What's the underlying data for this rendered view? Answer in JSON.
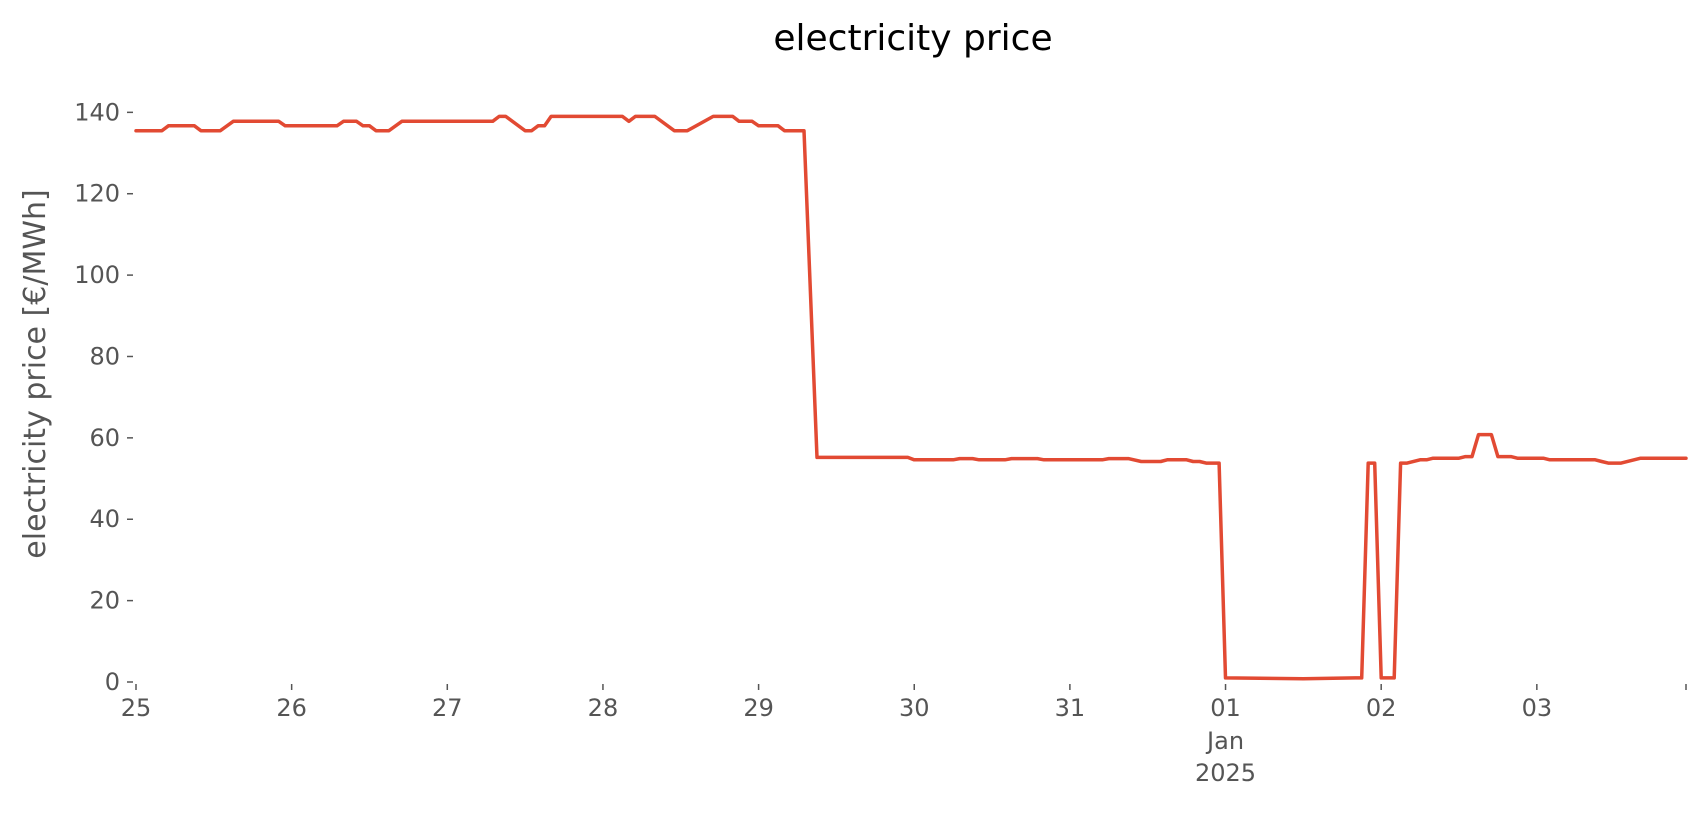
{
  "chart_data": {
    "type": "line",
    "title": "electricity price",
    "xlabel": "",
    "ylabel": "electricity price [€/MWh]",
    "xlim": [
      "2024-12-25",
      "2025-01-03 23:00"
    ],
    "ylim": [
      0,
      145
    ],
    "grid": false,
    "legend": "none",
    "x_ticks": [
      {
        "date": "2024-12-25",
        "label": "25"
      },
      {
        "date": "2024-12-26",
        "label": "26"
      },
      {
        "date": "2024-12-27",
        "label": "27"
      },
      {
        "date": "2024-12-28",
        "label": "28"
      },
      {
        "date": "2024-12-29",
        "label": "29"
      },
      {
        "date": "2024-12-30",
        "label": "30"
      },
      {
        "date": "2024-12-31",
        "label": "31"
      },
      {
        "date": "2025-01-01",
        "label": "01",
        "sublabels": [
          "Jan",
          "2025"
        ]
      },
      {
        "date": "2025-01-02",
        "label": "02"
      },
      {
        "date": "2025-01-03",
        "label": "03"
      },
      {
        "date": "2025-01-03 23:00",
        "label": ""
      }
    ],
    "y_ticks": [
      0,
      20,
      40,
      60,
      80,
      100,
      120,
      140
    ],
    "series": [
      {
        "color": "#E24A33",
        "points": [
          [
            "2024-12-25 00:00",
            135.5
          ],
          [
            "2024-12-25 04:00",
            135.5
          ],
          [
            "2024-12-25 05:00",
            136.7
          ],
          [
            "2024-12-25 09:00",
            136.7
          ],
          [
            "2024-12-25 10:00",
            135.5
          ],
          [
            "2024-12-25 13:00",
            135.5
          ],
          [
            "2024-12-25 15:00",
            137.8
          ],
          [
            "2024-12-25 22:00",
            137.8
          ],
          [
            "2024-12-25 23:00",
            136.7
          ],
          [
            "2024-12-26 07:00",
            136.7
          ],
          [
            "2024-12-26 08:00",
            137.8
          ],
          [
            "2024-12-26 10:00",
            137.8
          ],
          [
            "2024-12-26 11:00",
            136.7
          ],
          [
            "2024-12-26 12:00",
            136.7
          ],
          [
            "2024-12-26 13:00",
            135.5
          ],
          [
            "2024-12-26 15:00",
            135.5
          ],
          [
            "2024-12-26 17:00",
            137.8
          ],
          [
            "2024-12-27 07:00",
            137.8
          ],
          [
            "2024-12-27 08:00",
            139.0
          ],
          [
            "2024-12-27 09:00",
            139.0
          ],
          [
            "2024-12-27 12:00",
            135.5
          ],
          [
            "2024-12-27 13:00",
            135.5
          ],
          [
            "2024-12-27 14:00",
            136.7
          ],
          [
            "2024-12-27 15:00",
            136.7
          ],
          [
            "2024-12-27 16:00",
            139.0
          ],
          [
            "2024-12-28 03:00",
            139.0
          ],
          [
            "2024-12-28 04:00",
            137.8
          ],
          [
            "2024-12-28 05:00",
            139.0
          ],
          [
            "2024-12-28 08:00",
            139.0
          ],
          [
            "2024-12-28 11:00",
            135.5
          ],
          [
            "2024-12-28 13:00",
            135.5
          ],
          [
            "2024-12-28 17:00",
            139.0
          ],
          [
            "2024-12-28 20:00",
            139.0
          ],
          [
            "2024-12-28 21:00",
            137.8
          ],
          [
            "2024-12-28 23:00",
            137.8
          ],
          [
            "2024-12-29 00:00",
            136.7
          ],
          [
            "2024-12-29 03:00",
            136.7
          ],
          [
            "2024-12-29 04:00",
            135.5
          ],
          [
            "2024-12-29 07:00",
            135.5
          ],
          [
            "2024-12-29 09:00",
            55.2
          ],
          [
            "2024-12-29 23:00",
            55.2
          ],
          [
            "2024-12-30 00:00",
            54.6
          ],
          [
            "2024-12-30 06:00",
            54.6
          ],
          [
            "2024-12-30 07:00",
            54.9
          ],
          [
            "2024-12-30 09:00",
            54.9
          ],
          [
            "2024-12-30 10:00",
            54.6
          ],
          [
            "2024-12-30 14:00",
            54.6
          ],
          [
            "2024-12-30 15:00",
            54.9
          ],
          [
            "2024-12-30 19:00",
            54.9
          ],
          [
            "2024-12-30 20:00",
            54.6
          ],
          [
            "2024-12-31 05:00",
            54.6
          ],
          [
            "2024-12-31 06:00",
            54.9
          ],
          [
            "2024-12-31 09:00",
            54.9
          ],
          [
            "2024-12-31 11:00",
            54.2
          ],
          [
            "2024-12-31 14:00",
            54.2
          ],
          [
            "2024-12-31 15:00",
            54.6
          ],
          [
            "2024-12-31 18:00",
            54.6
          ],
          [
            "2024-12-31 19:00",
            54.2
          ],
          [
            "2024-12-31 20:00",
            54.2
          ],
          [
            "2024-12-31 21:00",
            53.8
          ],
          [
            "2024-12-31 23:00",
            53.8
          ],
          [
            "2025-01-01 00:00",
            1.0
          ],
          [
            "2025-01-01 12:00",
            0.8
          ],
          [
            "2025-01-01 20:00",
            1.0
          ],
          [
            "2025-01-01 21:00",
            1.0
          ],
          [
            "2025-01-01 22:00",
            53.8
          ],
          [
            "2025-01-01 23:00",
            53.8
          ],
          [
            "2025-01-02 00:00",
            1.0
          ],
          [
            "2025-01-02 02:00",
            1.0
          ],
          [
            "2025-01-02 03:00",
            53.8
          ],
          [
            "2025-01-02 04:00",
            53.8
          ],
          [
            "2025-01-02 06:00",
            54.6
          ],
          [
            "2025-01-02 07:00",
            54.6
          ],
          [
            "2025-01-02 08:00",
            55.0
          ],
          [
            "2025-01-02 12:00",
            55.0
          ],
          [
            "2025-01-02 13:00",
            55.4
          ],
          [
            "2025-01-02 14:00",
            55.4
          ],
          [
            "2025-01-02 15:00",
            60.8
          ],
          [
            "2025-01-02 17:00",
            60.8
          ],
          [
            "2025-01-02 18:00",
            55.4
          ],
          [
            "2025-01-02 20:00",
            55.4
          ],
          [
            "2025-01-02 21:00",
            55.0
          ],
          [
            "2025-01-03 01:00",
            55.0
          ],
          [
            "2025-01-03 02:00",
            54.6
          ],
          [
            "2025-01-03 09:00",
            54.6
          ],
          [
            "2025-01-03 10:00",
            54.2
          ],
          [
            "2025-01-03 11:00",
            53.8
          ],
          [
            "2025-01-03 13:00",
            53.8
          ],
          [
            "2025-01-03 16:00",
            55.0
          ],
          [
            "2025-01-03 23:00",
            55.0
          ]
        ]
      }
    ]
  }
}
